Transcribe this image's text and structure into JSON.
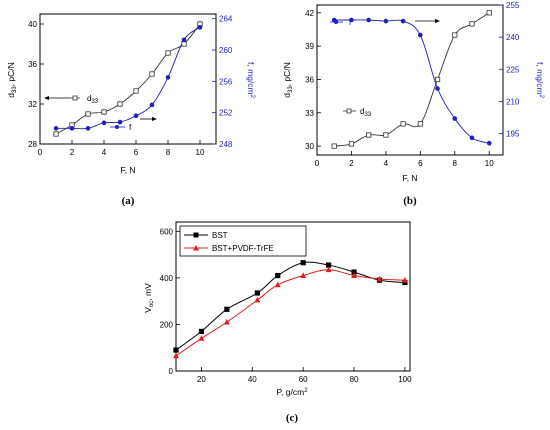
{
  "chart_data": [
    {
      "type": "line",
      "panel_label": "(a)",
      "x": [
        1,
        2,
        3,
        4,
        5,
        6,
        7,
        8,
        9,
        10
      ],
      "xlabel": "F, N",
      "xticks": [
        "0",
        "2",
        "4",
        "6",
        "8",
        "10"
      ],
      "xlim": [
        0,
        11
      ],
      "ylabel_left": "d33, pC/N",
      "ylabel_left_main": "d",
      "ylabel_left_sub": "33",
      "ylabel_left_rest": ", pC/N",
      "yticks_left": [
        "28",
        "32",
        "36",
        "40"
      ],
      "ylim_left": [
        28,
        41
      ],
      "ylabel_right": "f, mg/cm2",
      "ylabel_right_main": "f, mg/cm",
      "ylabel_right_sup": "2",
      "yticks_right": [
        "248",
        "252",
        "256",
        "260",
        "264"
      ],
      "ylim_right": [
        248,
        264.6
      ],
      "series": [
        {
          "name": "d33",
          "name_main": "d",
          "name_sub": "33",
          "axis": "left",
          "marker": "open-square",
          "color": "#333333",
          "values": [
            29.0,
            29.9,
            31.0,
            31.2,
            32.0,
            33.3,
            35.0,
            37.1,
            38.0,
            40.0
          ]
        },
        {
          "name": "f",
          "axis": "right",
          "marker": "filled-circle",
          "color": "#1f1fbf",
          "values": [
            250.0,
            250.0,
            250.0,
            250.7,
            250.8,
            251.6,
            253.0,
            256.5,
            261.3,
            262.9
          ]
        }
      ],
      "legend_position": "bottom-left",
      "colors": {
        "d33": "#333333",
        "f": "#1f1fbf"
      }
    },
    {
      "type": "line",
      "panel_label": "(b)",
      "x": [
        1,
        2,
        3,
        4,
        5,
        6,
        7,
        8,
        9,
        10
      ],
      "xlabel": "F, N",
      "xticks": [
        "0",
        "2",
        "4",
        "6",
        "8",
        "10"
      ],
      "xlim": [
        0,
        10.8
      ],
      "ylabel_left": "d33, pC/N",
      "ylabel_left_main": "d",
      "ylabel_left_sub": "33",
      "ylabel_left_rest": ", pC/N",
      "yticks_left": [
        "30",
        "33",
        "36",
        "39",
        "42"
      ],
      "ylim_left": [
        29.2,
        42.7
      ],
      "ylabel_right": "f, mg/cm2",
      "ylabel_right_main": "f, mg/cm",
      "ylabel_right_sup": "2",
      "yticks_right": [
        "195",
        "210",
        "225",
        "240",
        "255"
      ],
      "ylim_right": [
        185,
        255
      ],
      "series": [
        {
          "name": "d33",
          "name_main": "d",
          "name_sub": "33",
          "axis": "left",
          "marker": "open-square",
          "color": "#333333",
          "values": [
            30.0,
            30.2,
            31.0,
            31.0,
            32.0,
            32.0,
            36.0,
            40.0,
            41.0,
            42.0
          ]
        },
        {
          "name": "f",
          "axis": "right",
          "marker": "filled-circle",
          "color": "#1f1fbf",
          "values": [
            248.0,
            248.0,
            248.0,
            247.5,
            247.5,
            241.0,
            216.0,
            202.0,
            193.0,
            190.5
          ]
        }
      ],
      "legend_position": "top-left",
      "colors": {
        "d33": "#333333",
        "f": "#1f1fbf"
      }
    },
    {
      "type": "line",
      "panel_label": "(c)",
      "x": [
        10,
        20,
        30,
        42,
        50,
        60,
        70,
        80,
        90,
        100
      ],
      "xlabel": "P, g/cm2",
      "xlabel_main": "P, g/cm",
      "xlabel_sup": "2",
      "xticks": [
        "20",
        "40",
        "60",
        "80",
        "100"
      ],
      "xlim": [
        10,
        102
      ],
      "ylabel": "Voc, mV",
      "ylabel_main": "V",
      "ylabel_sub": "oc",
      "ylabel_rest": ", mV",
      "yticks": [
        "0",
        "200",
        "400",
        "600"
      ],
      "ylim": [
        0,
        640
      ],
      "series": [
        {
          "name": "BST",
          "marker": "filled-square",
          "color": "#000000",
          "values": [
            90,
            170,
            265,
            335,
            410,
            465,
            455,
            425,
            390,
            380
          ]
        },
        {
          "name": "BST+PVDF-TrFE",
          "marker": "filled-triangle",
          "color": "#e02020",
          "values": [
            65,
            140,
            210,
            305,
            370,
            410,
            435,
            410,
            395,
            390
          ]
        }
      ],
      "legend_position": "top-left",
      "colors": {
        "BST": "#000000",
        "BST+PVDF-TrFE": "#e02020"
      }
    }
  ]
}
